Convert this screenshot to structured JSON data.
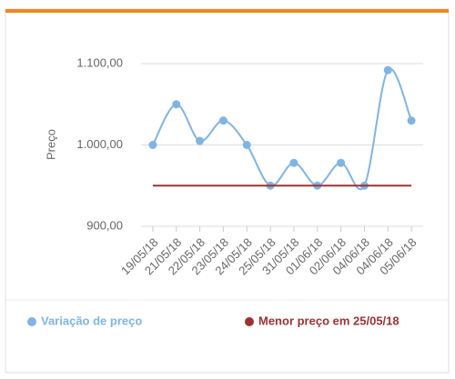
{
  "chart_data": {
    "type": "line",
    "y_label": "Preço",
    "categories": [
      "19/05/18",
      "21/05/18",
      "22/05/18",
      "23/05/18",
      "24/05/18",
      "25/05/18",
      "31/05/18",
      "01/06/18",
      "02/06/18",
      "04/06/18",
      "04/06/18",
      "05/06/18"
    ],
    "series": [
      {
        "name": "Variação de preço",
        "color": "#7fb4e3",
        "values": [
          1000,
          1050,
          1005,
          1030,
          1000,
          950,
          978,
          950,
          978,
          950,
          1092,
          1030
        ]
      },
      {
        "name": "Menor preço em 25/05/18",
        "color": "#9b3232",
        "values": [
          950,
          950,
          950,
          950,
          950,
          950,
          950,
          950,
          950,
          950,
          950,
          950
        ]
      }
    ],
    "ylim": [
      900,
      1100
    ],
    "yticks": [
      {
        "value": 900,
        "label": "900,00"
      },
      {
        "value": 1000,
        "label": "1.000,00"
      },
      {
        "value": 1100,
        "label": "1.100,00"
      }
    ],
    "grid": true
  }
}
